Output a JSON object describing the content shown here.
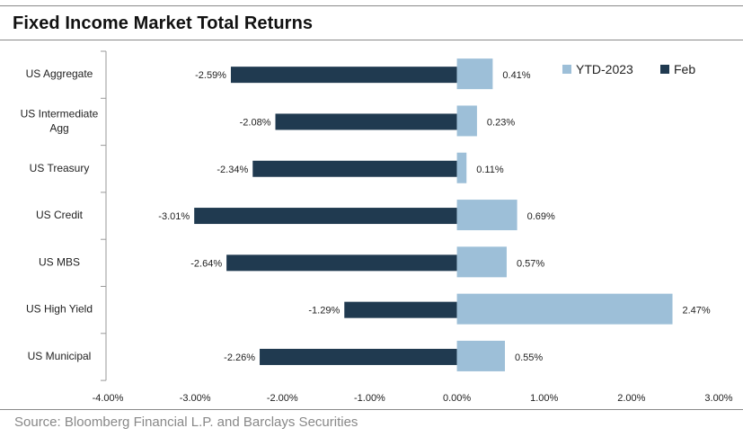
{
  "title": "Fixed Income Market Total Returns",
  "source": "Source: Bloomberg Financial L.P. and Barclays Securities",
  "colors": {
    "ytd": "#9dbfd8",
    "feb": "#203a50"
  },
  "chart_data": {
    "type": "bar",
    "orientation": "horizontal",
    "categories": [
      [
        "US Aggregate"
      ],
      [
        "US Intermediate",
        "Agg"
      ],
      [
        "US Treasury"
      ],
      [
        "US Credit"
      ],
      [
        "US MBS"
      ],
      [
        "US High Yield"
      ],
      [
        "US Municipal"
      ]
    ],
    "series": [
      {
        "name": "YTD-2023",
        "values": [
          0.41,
          0.23,
          0.11,
          0.69,
          0.57,
          2.47,
          0.55
        ],
        "labels": [
          "0.41%",
          "0.23%",
          "0.11%",
          "0.69%",
          "0.57%",
          "2.47%",
          "0.55%"
        ]
      },
      {
        "name": "Feb",
        "values": [
          -2.59,
          -2.08,
          -2.34,
          -3.01,
          -2.64,
          -1.29,
          -2.26
        ],
        "labels": [
          "-2.59%",
          "-2.08%",
          "-2.34%",
          "-3.01%",
          "-2.64%",
          "-1.29%",
          "-2.26%"
        ]
      }
    ],
    "xlim": [
      -4,
      3
    ],
    "xticks": [
      -4,
      -3,
      -2,
      -1,
      0,
      1,
      2,
      3
    ],
    "xtick_labels": [
      "-4.00%",
      "-3.00%",
      "-2.00%",
      "-1.00%",
      "0.00%",
      "1.00%",
      "2.00%",
      "3.00%"
    ],
    "legend": "top-right",
    "grid": false
  }
}
